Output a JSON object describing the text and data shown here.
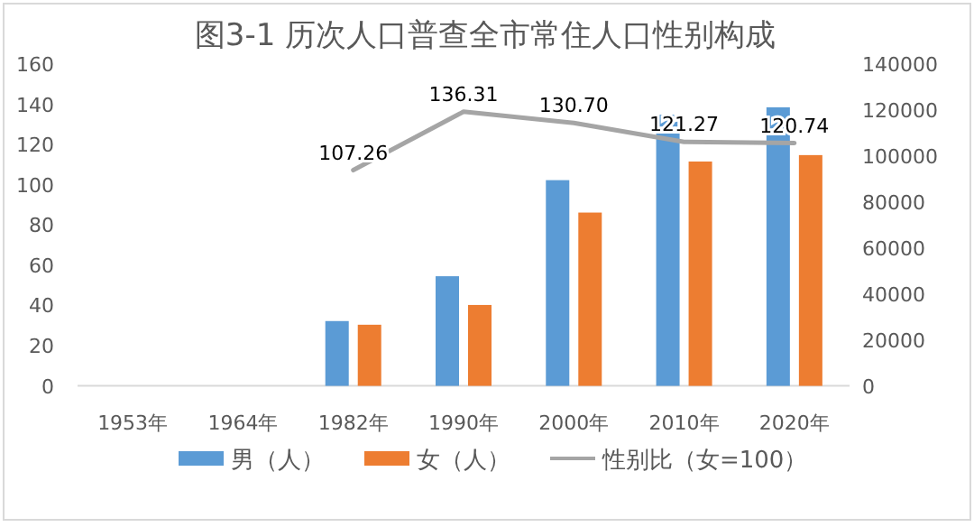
{
  "chart_data": {
    "type": "bar",
    "title": "图3-1 历次人口普查全市常住人口性别构成",
    "categories": [
      "1953年",
      "1964年",
      "1982年",
      "1990年",
      "2000年",
      "2010年",
      "2020年"
    ],
    "series": [
      {
        "name": "男（人）",
        "color": "#5b9bd5",
        "axis": "y2",
        "values": [
          null,
          null,
          28200,
          47700,
          89500,
          118000,
          121200
        ]
      },
      {
        "name": "女（人）",
        "color": "#ed7d31",
        "axis": "y2",
        "values": [
          null,
          null,
          26600,
          35200,
          75400,
          97600,
          100400
        ]
      },
      {
        "name": "性别比（女=100）",
        "type": "line",
        "color": "#a5a5a5",
        "axis": "y",
        "values": [
          null,
          null,
          107.26,
          136.31,
          130.7,
          121.27,
          120.74
        ],
        "value_labels": [
          null,
          null,
          "107.26",
          "136.31",
          "130.70",
          "121.27",
          "120.74"
        ]
      }
    ],
    "ylim": [
      0,
      160
    ],
    "yticks": [
      0,
      20,
      40,
      60,
      80,
      100,
      120,
      140,
      160
    ],
    "y2lim": [
      0,
      140000
    ],
    "y2ticks": [
      0,
      20000,
      40000,
      60000,
      80000,
      100000,
      120000,
      140000
    ],
    "legend": "bottom"
  }
}
